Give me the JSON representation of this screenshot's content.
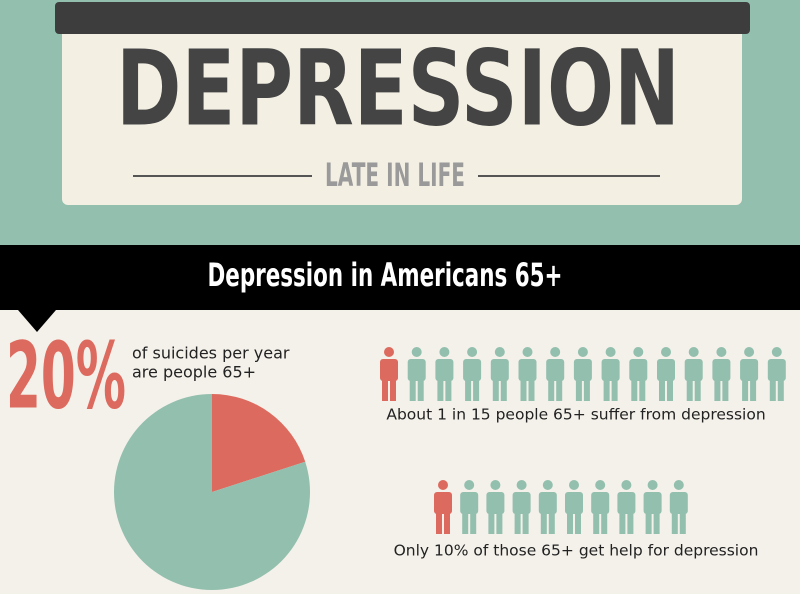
{
  "header": {
    "title": "DEPRESSION",
    "subtitle": "LATE IN LIFE"
  },
  "section": {
    "title": "Depression in Americans 65+"
  },
  "stat": {
    "text_lines": [
      "of suicides per year",
      "are people 65+"
    ]
  },
  "chart_data": {
    "type": "pie",
    "values": [
      20,
      80
    ],
    "value_labels": [
      "20%",
      null
    ],
    "colors": [
      "#dd6a5e",
      "#93bfae"
    ]
  },
  "icons": {
    "rows": [
      {
        "total": 15,
        "highlighted": 1,
        "caption": "About 1 in 15 people 65+ suffer from depression"
      },
      {
        "total": 10,
        "highlighted": 1,
        "caption": "Only 10% of those 65+ get help for depression"
      }
    ]
  }
}
